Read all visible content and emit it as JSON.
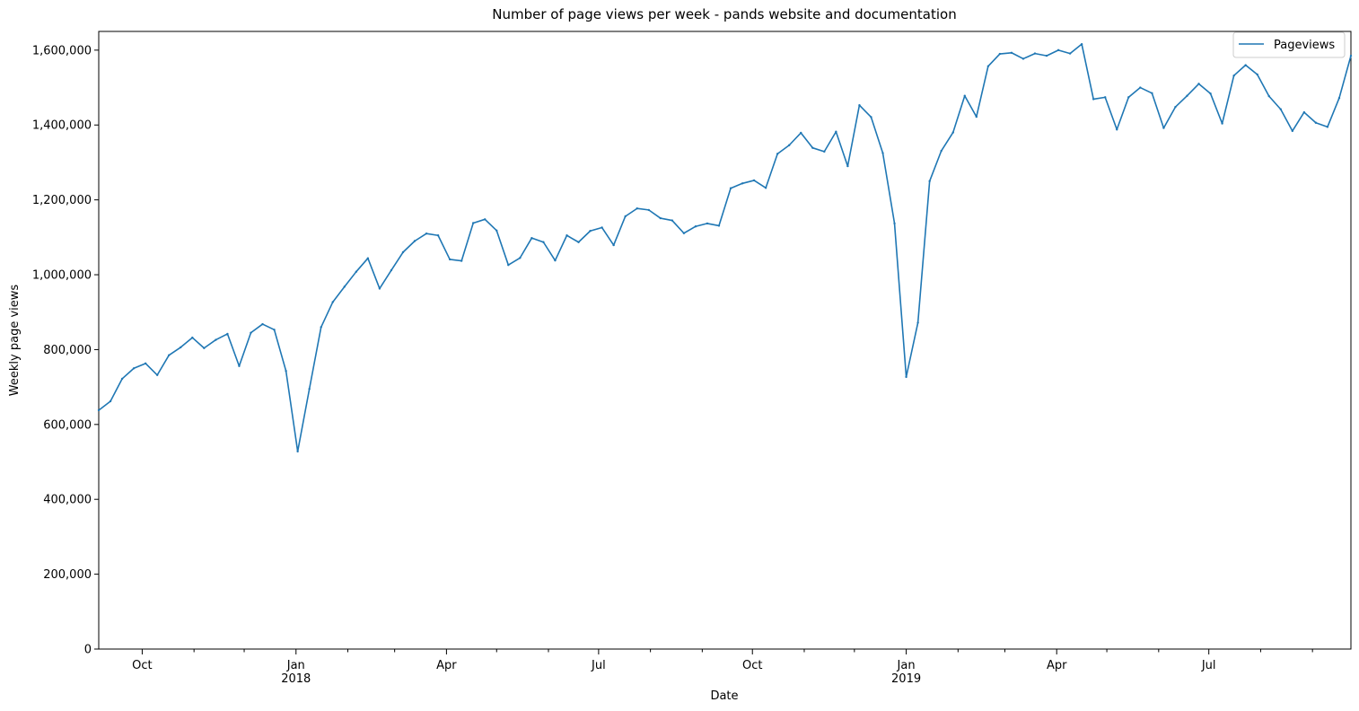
{
  "chart_data": {
    "type": "line",
    "title": "Number of page views per week - pands website and documentation",
    "xlabel": "Date",
    "ylabel": "Weekly page views",
    "xlim": [
      "2017-09-05",
      "2019-09-24"
    ],
    "ylim": [
      0,
      1650000
    ],
    "yticks": [
      0,
      200000,
      400000,
      600000,
      800000,
      1000000,
      1200000,
      1400000,
      1600000
    ],
    "ytick_labels": [
      "0",
      "200,000",
      "400,000",
      "600,000",
      "800,000",
      "1,000,000",
      "1,200,000",
      "1,400,000",
      "1,600,000"
    ],
    "xticks_major": [
      {
        "date": "2017-10-01",
        "label": "Oct",
        "sublabel": ""
      },
      {
        "date": "2018-01-01",
        "label": "Jan",
        "sublabel": "2018"
      },
      {
        "date": "2018-04-01",
        "label": "Apr",
        "sublabel": ""
      },
      {
        "date": "2018-07-01",
        "label": "Jul",
        "sublabel": ""
      },
      {
        "date": "2018-10-01",
        "label": "Oct",
        "sublabel": ""
      },
      {
        "date": "2019-01-01",
        "label": "Jan",
        "sublabel": "2019"
      },
      {
        "date": "2019-04-01",
        "label": "Apr",
        "sublabel": ""
      },
      {
        "date": "2019-07-01",
        "label": "Jul",
        "sublabel": ""
      }
    ],
    "xticks_minor": [
      "2017-11-01",
      "2017-12-01",
      "2018-02-01",
      "2018-03-01",
      "2018-05-01",
      "2018-06-01",
      "2018-08-01",
      "2018-09-01",
      "2018-11-01",
      "2018-12-01",
      "2019-02-01",
      "2019-03-01",
      "2019-05-01",
      "2019-06-01",
      "2019-08-01",
      "2019-09-01"
    ],
    "legend": {
      "position": "top-right"
    },
    "grid": false,
    "series": [
      {
        "name": "Pageviews",
        "color": "#1f77b4",
        "x": [
          "2017-09-05",
          "2017-09-12",
          "2017-09-19",
          "2017-09-26",
          "2017-10-03",
          "2017-10-10",
          "2017-10-17",
          "2017-10-24",
          "2017-10-31",
          "2017-11-07",
          "2017-11-14",
          "2017-11-21",
          "2017-11-28",
          "2017-12-05",
          "2017-12-12",
          "2017-12-19",
          "2017-12-26",
          "2018-01-02",
          "2018-01-09",
          "2018-01-16",
          "2018-01-23",
          "2018-01-30",
          "2018-02-06",
          "2018-02-13",
          "2018-02-20",
          "2018-02-27",
          "2018-03-06",
          "2018-03-13",
          "2018-03-20",
          "2018-03-27",
          "2018-04-03",
          "2018-04-10",
          "2018-04-17",
          "2018-04-24",
          "2018-05-01",
          "2018-05-08",
          "2018-05-15",
          "2018-05-22",
          "2018-05-29",
          "2018-06-05",
          "2018-06-12",
          "2018-06-19",
          "2018-06-26",
          "2018-07-03",
          "2018-07-10",
          "2018-07-17",
          "2018-07-24",
          "2018-07-31",
          "2018-08-07",
          "2018-08-14",
          "2018-08-21",
          "2018-08-28",
          "2018-09-04",
          "2018-09-11",
          "2018-09-18",
          "2018-09-25",
          "2018-10-02",
          "2018-10-09",
          "2018-10-16",
          "2018-10-23",
          "2018-10-30",
          "2018-11-06",
          "2018-11-13",
          "2018-11-20",
          "2018-11-27",
          "2018-12-04",
          "2018-12-11",
          "2018-12-18",
          "2018-12-25",
          "2019-01-01",
          "2019-01-08",
          "2019-01-15",
          "2019-01-22",
          "2019-01-29",
          "2019-02-05",
          "2019-02-12",
          "2019-02-19",
          "2019-02-26",
          "2019-03-05",
          "2019-03-12",
          "2019-03-19",
          "2019-03-26",
          "2019-04-02",
          "2019-04-09",
          "2019-04-16",
          "2019-04-23",
          "2019-04-30",
          "2019-05-07",
          "2019-05-14",
          "2019-05-21",
          "2019-05-28",
          "2019-06-04",
          "2019-06-11",
          "2019-06-18",
          "2019-06-25",
          "2019-07-02",
          "2019-07-09",
          "2019-07-16",
          "2019-07-23",
          "2019-07-30",
          "2019-08-06",
          "2019-08-13",
          "2019-08-20",
          "2019-08-27",
          "2019-09-03",
          "2019-09-10",
          "2019-09-17",
          "2019-09-24"
        ],
        "y": [
          638000,
          662000,
          722000,
          750000,
          763000,
          732000,
          785000,
          806000,
          832000,
          804000,
          826000,
          842000,
          756000,
          845000,
          868000,
          853000,
          743000,
          528000,
          695000,
          860000,
          927000,
          968000,
          1008000,
          1044000,
          963000,
          1012000,
          1060000,
          1090000,
          1110000,
          1105000,
          1041000,
          1037000,
          1138000,
          1148000,
          1118000,
          1026000,
          1045000,
          1098000,
          1087000,
          1038000,
          1105000,
          1087000,
          1117000,
          1126000,
          1079000,
          1156000,
          1177000,
          1173000,
          1151000,
          1145000,
          1111000,
          1129000,
          1137000,
          1131000,
          1231000,
          1244000,
          1252000,
          1232000,
          1323000,
          1346000,
          1379000,
          1339000,
          1329000,
          1382000,
          1290000,
          1453000,
          1421000,
          1325000,
          1137000,
          727000,
          872000,
          1250000,
          1331000,
          1380000,
          1478000,
          1422000,
          1557000,
          1590000,
          1593000,
          1577000,
          1591000,
          1585000,
          1600000,
          1591000,
          1616000,
          1469000,
          1474000,
          1388000,
          1474000,
          1500000,
          1485000,
          1392000,
          1448000,
          1478000,
          1510000,
          1484000,
          1404000,
          1532000,
          1560000,
          1535000,
          1477000,
          1442000,
          1384000,
          1434000,
          1406000,
          1395000,
          1472000,
          1585000
        ]
      }
    ]
  }
}
